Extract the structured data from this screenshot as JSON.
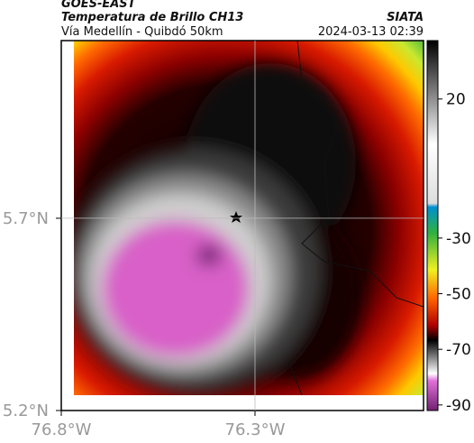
{
  "header": {
    "title": "GOES-EAST",
    "subtitle": "Temperatura de Brillo CH13",
    "region": "Vía Medellín - Quibdó 50km",
    "source": "SIATA",
    "timestamp": "2024-03-13 02:39"
  },
  "map": {
    "xlim": [
      -76.8,
      -75.865
    ],
    "ylim": [
      5.2,
      6.162
    ],
    "xticks": [
      {
        "value": -76.8,
        "label": "76.8°W"
      },
      {
        "value": -76.3,
        "label": "76.3°W"
      }
    ],
    "yticks": [
      {
        "value": 5.2,
        "label": "5.2°N"
      },
      {
        "value": 5.7,
        "label": "5.7°N"
      }
    ]
  },
  "colorbar": {
    "lim": [
      -92,
      41
    ],
    "ticks": [
      20,
      -30,
      -50,
      -70,
      -90
    ]
  }
}
